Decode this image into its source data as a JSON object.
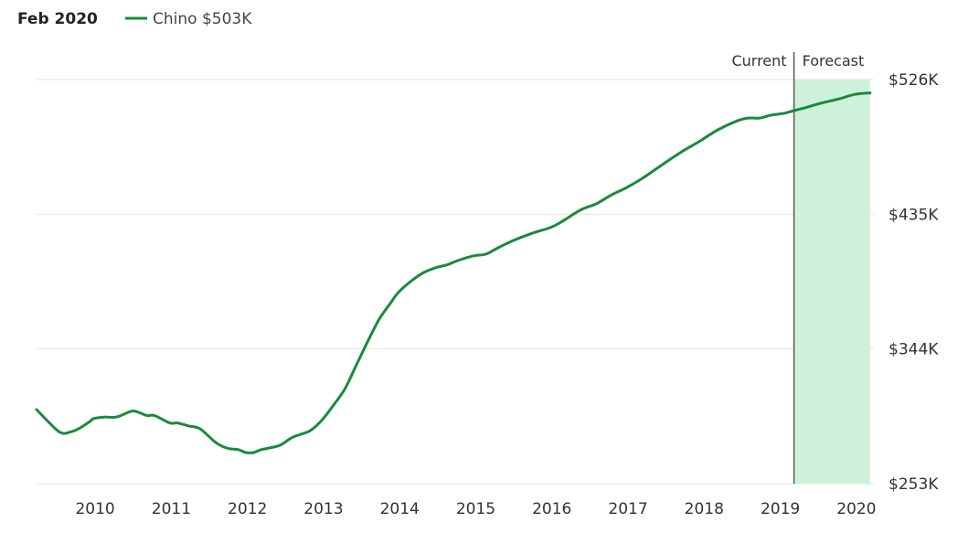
{
  "header": {
    "date_label": "Feb 2020"
  },
  "colors": {
    "series": "#1a8a3c",
    "forecast_fill": "#cdf2d9",
    "divider": "#555555",
    "grid": "#e6e6e6"
  },
  "chart_data": {
    "type": "line",
    "title": "",
    "xlabel": "",
    "ylabel": "",
    "legend": {
      "position": "top-left",
      "entries": [
        {
          "name": "Chino",
          "value_label": "$503K"
        }
      ]
    },
    "x_ticks": [
      "2010",
      "2011",
      "2012",
      "2013",
      "2014",
      "2015",
      "2016",
      "2017",
      "2018",
      "2019",
      "2020"
    ],
    "y_ticks": [
      {
        "value": 253,
        "label": "$253K"
      },
      {
        "value": 344,
        "label": "$344K"
      },
      {
        "value": 435,
        "label": "$435K"
      },
      {
        "value": 526,
        "label": "$526K"
      }
    ],
    "xlim": [
      2009.25,
      2020.25
    ],
    "ylim": [
      253,
      526
    ],
    "grid": true,
    "regions": {
      "current_label": "Current",
      "forecast_label": "Forecast",
      "divider_x": 2019.2,
      "forecast_end_x": 2020.2
    },
    "series": [
      {
        "name": "Chino",
        "x": [
          2009.25,
          2009.5,
          2009.6,
          2009.7,
          2009.8,
          2009.95,
          2010.0,
          2010.15,
          2010.3,
          2010.5,
          2010.6,
          2010.7,
          2010.8,
          2011.0,
          2011.1,
          2011.25,
          2011.4,
          2011.6,
          2011.75,
          2011.9,
          2012.0,
          2012.1,
          2012.2,
          2012.3,
          2012.45,
          2012.6,
          2012.7,
          2012.85,
          2013.0,
          2013.15,
          2013.3,
          2013.45,
          2013.6,
          2013.75,
          2013.9,
          2014.0,
          2014.2,
          2014.35,
          2014.5,
          2014.65,
          2014.8,
          2015.0,
          2015.15,
          2015.3,
          2015.5,
          2015.75,
          2016.0,
          2016.15,
          2016.4,
          2016.6,
          2016.8,
          2017.0,
          2017.2,
          2017.4,
          2017.6,
          2017.75,
          2017.95,
          2018.2,
          2018.45,
          2018.6,
          2018.75,
          2018.9,
          2019.05,
          2019.2,
          2019.35,
          2019.55,
          2019.8,
          2020.0,
          2020.2
        ],
        "values": [
          303,
          290,
          287,
          288,
          290,
          295,
          297,
          298,
          298,
          302,
          301,
          299,
          299,
          294,
          294,
          292,
          290,
          281,
          277,
          276,
          274,
          274,
          276,
          277,
          279,
          284,
          286,
          289,
          296,
          306,
          317,
          333,
          349,
          364,
          375,
          382,
          391,
          396,
          399,
          401,
          404,
          407,
          408,
          412,
          417,
          422,
          426,
          430,
          438,
          442,
          448,
          453,
          459,
          466,
          473,
          478,
          484,
          492,
          498,
          500,
          500,
          502,
          503,
          505,
          507,
          510,
          513,
          516,
          517
        ]
      }
    ]
  }
}
